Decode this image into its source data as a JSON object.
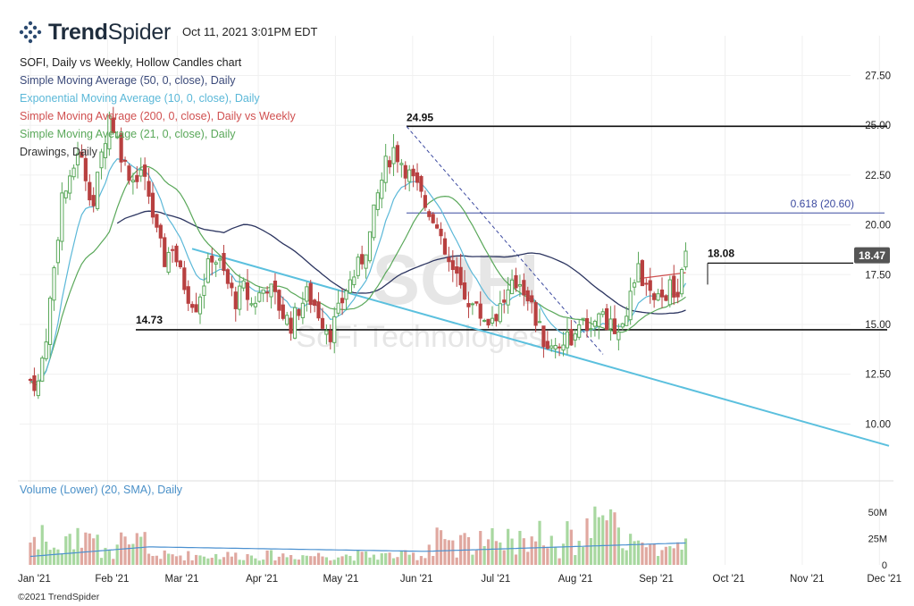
{
  "header": {
    "brand_bold": "Trend",
    "brand_regular": "Spider",
    "logo_icon": "dot-grid-logo-icon",
    "timestamp": "Oct 11, 2021 3:01PM EDT"
  },
  "legend": {
    "title": "SOFI, Daily vs Weekly, Hollow Candles chart",
    "items": [
      {
        "label": "Simple Moving Average (50, 0, close), Daily",
        "color": "#3b4a7a"
      },
      {
        "label": "Exponential Moving Average (10, 0, close), Daily",
        "color": "#5bb8d8"
      },
      {
        "label": "Simple Moving Average (200, 0, close), Daily vs Weekly",
        "color": "#d05050"
      },
      {
        "label": "Simple Moving Average (21, 0, close), Daily",
        "color": "#5aa85a"
      },
      {
        "label": "Drawings, Daily",
        "color": "#333333"
      }
    ]
  },
  "volume_title": "Volume (Lower) (20, SMA), Daily",
  "copyright": "©2021 TrendSpider",
  "watermark": {
    "ticker": "SOFI",
    "name": "SoFi Technologies"
  },
  "colors": {
    "up": "#5aa85a",
    "down": "#b84040",
    "vol_up": "#a8d8a0",
    "vol_down": "#e0a8a0",
    "trendline": "#5bc0de",
    "sma50": "#2c3560",
    "ema10": "#5bb8d8",
    "sma200": "#d05050",
    "sma21": "#5aa85a",
    "fib": "#3c4aa0",
    "badge": "#555555"
  },
  "chart_data": {
    "type": "candlestick",
    "symbol": "SOFI",
    "x_labels": [
      "Jan '21",
      "Feb '21",
      "Mar '21",
      "Apr '21",
      "May '21",
      "Jun '21",
      "Jul '21",
      "Aug '21",
      "Sep '21",
      "Oct '21",
      "Nov '21",
      "Dec '21"
    ],
    "y_ticks": [
      "27.50",
      "25.00",
      "22.50",
      "20.00",
      "17.50",
      "15.00",
      "12.50",
      "10.00"
    ],
    "ylim": [
      7.5,
      29.5
    ],
    "vol_ticks": [
      "50M",
      "25M",
      "0"
    ],
    "vol_lim": [
      0,
      65
    ],
    "last_price": "18.47",
    "annotations": {
      "high": "24.95",
      "support": "14.73",
      "fib": "0.618 (20.60)",
      "resistance": "18.08"
    },
    "price_path": [
      [
        0,
        12.2
      ],
      [
        2,
        12.0
      ],
      [
        4,
        14.5
      ],
      [
        6,
        17.8
      ],
      [
        8,
        21.5
      ],
      [
        10,
        22.0
      ],
      [
        12,
        23.8
      ],
      [
        14,
        22.5
      ],
      [
        16,
        21.0
      ],
      [
        18,
        23.5
      ],
      [
        20,
        25.5
      ],
      [
        22,
        24.3
      ],
      [
        24,
        23.0
      ],
      [
        26,
        22.3
      ],
      [
        28,
        22.8
      ],
      [
        30,
        21.5
      ],
      [
        32,
        19.5
      ],
      [
        34,
        18.2
      ],
      [
        36,
        19.0
      ],
      [
        38,
        17.5
      ],
      [
        40,
        16.5
      ],
      [
        42,
        16.0
      ],
      [
        44,
        17.2
      ],
      [
        46,
        18.5
      ],
      [
        48,
        18.0
      ],
      [
        50,
        17.0
      ],
      [
        52,
        16.2
      ],
      [
        54,
        16.8
      ],
      [
        56,
        16.0
      ],
      [
        58,
        16.5
      ],
      [
        60,
        17.0
      ],
      [
        62,
        16.3
      ],
      [
        64,
        15.5
      ],
      [
        66,
        15.0
      ],
      [
        68,
        15.8
      ],
      [
        70,
        16.5
      ],
      [
        72,
        16.0
      ],
      [
        74,
        15.2
      ],
      [
        76,
        14.6
      ],
      [
        78,
        15.6
      ],
      [
        80,
        16.8
      ],
      [
        82,
        17.5
      ],
      [
        84,
        18.3
      ],
      [
        86,
        19.5
      ],
      [
        88,
        21.5
      ],
      [
        90,
        23.0
      ],
      [
        92,
        23.8
      ],
      [
        94,
        23.2
      ],
      [
        96,
        22.5
      ],
      [
        98,
        21.8
      ],
      [
        100,
        21.0
      ],
      [
        102,
        20.5
      ],
      [
        104,
        19.0
      ],
      [
        106,
        18.0
      ],
      [
        108,
        17.2
      ],
      [
        110,
        16.5
      ],
      [
        112,
        16.0
      ],
      [
        114,
        15.5
      ],
      [
        116,
        15.2
      ],
      [
        118,
        15.6
      ],
      [
        120,
        16.2
      ],
      [
        122,
        16.8
      ],
      [
        124,
        17.2
      ],
      [
        126,
        16.5
      ],
      [
        128,
        15.2
      ],
      [
        130,
        14.2
      ],
      [
        132,
        13.8
      ],
      [
        134,
        14.1
      ],
      [
        136,
        14.4
      ],
      [
        138,
        14.3
      ],
      [
        140,
        14.9
      ],
      [
        142,
        15.2
      ],
      [
        144,
        15.6
      ],
      [
        146,
        15.1
      ],
      [
        148,
        14.8
      ],
      [
        150,
        15.3
      ],
      [
        152,
        16.5
      ],
      [
        154,
        17.6
      ],
      [
        156,
        16.8
      ],
      [
        158,
        16.0
      ],
      [
        160,
        16.3
      ],
      [
        162,
        16.8
      ],
      [
        164,
        16.4
      ],
      [
        166,
        18.3
      ]
    ]
  }
}
